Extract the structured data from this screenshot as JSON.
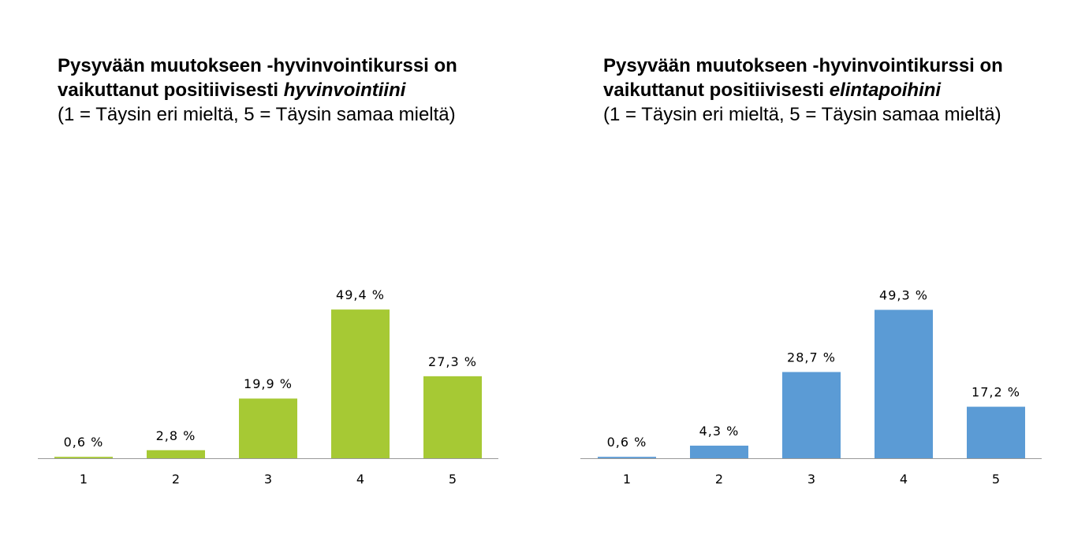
{
  "charts": [
    {
      "title_line1": "Pysyvään muutokseen -hyvinvointikurssi on",
      "title_line2_prefix": "vaikuttanut positiivisesti ",
      "title_line2_emphasis": "hyvinvointiini",
      "subtitle": "(1 = Täysin eri mieltä, 5 = Täysin samaa mieltä)",
      "bar_color": "#a6c934"
    },
    {
      "title_line1": "Pysyvään muutokseen -hyvinvointikurssi on",
      "title_line2_prefix": "vaikuttanut positiivisesti ",
      "title_line2_emphasis": "elintapoihini",
      "subtitle": "(1 = Täysin eri mieltä, 5 = Täysin samaa mieltä)",
      "bar_color": "#5b9bd5"
    }
  ],
  "chart_data": [
    {
      "type": "bar",
      "title": "Pysyvään muutokseen -hyvinvointikurssi on vaikuttanut positiivisesti hyvinvointiini (1 = Täysin eri mieltä, 5 = Täysin samaa mieltä)",
      "categories": [
        "1",
        "2",
        "3",
        "4",
        "5"
      ],
      "values": [
        0.6,
        2.8,
        19.9,
        49.4,
        27.3
      ],
      "data_labels": [
        "0,6 %",
        "2,8 %",
        "19,9 %",
        "49,4 %",
        "27,3 %"
      ],
      "xlabel": "",
      "ylabel": "",
      "ylim": [
        0,
        72
      ],
      "grid": false,
      "legend": "none"
    },
    {
      "type": "bar",
      "title": "Pysyvään muutokseen -hyvinvointikurssi on vaikuttanut positiivisesti elintapoihini (1 = Täysin eri mieltä, 5 = Täysin samaa mieltä)",
      "categories": [
        "1",
        "2",
        "3",
        "4",
        "5"
      ],
      "values": [
        0.6,
        4.3,
        28.7,
        49.3,
        17.2
      ],
      "data_labels": [
        "0,6 %",
        "4,3 %",
        "28,7 %",
        "49,3 %",
        "17,2 %"
      ],
      "xlabel": "",
      "ylabel": "",
      "ylim": [
        0,
        72
      ],
      "grid": false,
      "legend": "none"
    }
  ]
}
